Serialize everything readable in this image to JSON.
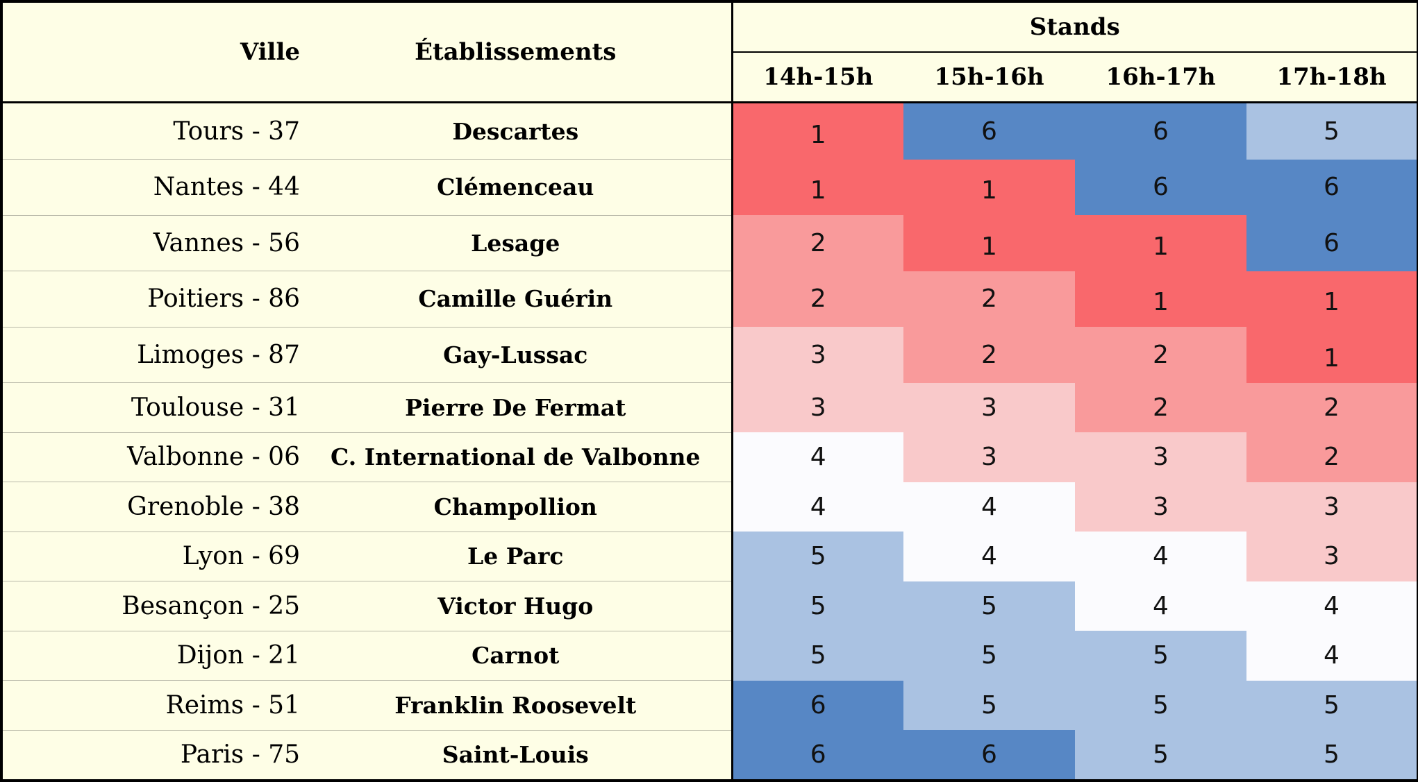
{
  "header": {
    "ville": "Ville",
    "etablissements": "Établissements",
    "stands": "Stands",
    "slots": [
      "14h-15h",
      "15h-16h",
      "16h-17h",
      "17h-18h"
    ]
  },
  "colors": {
    "1": "#f9686c",
    "2": "#f99a9b",
    "3": "#f9c9ca",
    "4": "#fbfbfe",
    "5": "#aac2e2",
    "6": "#5787c5"
  },
  "rows": [
    {
      "ville": "Tours - 37",
      "etab": "Descartes",
      "values": [
        1,
        6,
        6,
        5
      ]
    },
    {
      "ville": "Nantes - 44",
      "etab": "Clémenceau",
      "values": [
        1,
        1,
        6,
        6
      ]
    },
    {
      "ville": "Vannes - 56",
      "etab": "Lesage",
      "values": [
        2,
        1,
        1,
        6
      ]
    },
    {
      "ville": "Poitiers - 86",
      "etab": "Camille Guérin",
      "values": [
        2,
        2,
        1,
        1
      ]
    },
    {
      "ville": "Limoges - 87",
      "etab": "Gay-Lussac",
      "values": [
        3,
        2,
        2,
        1
      ]
    },
    {
      "ville": "Toulouse - 31",
      "etab": "Pierre De Fermat",
      "values": [
        3,
        3,
        2,
        2
      ]
    },
    {
      "ville": "Valbonne - 06",
      "etab": "C. International de Valbonne",
      "values": [
        4,
        3,
        3,
        2
      ]
    },
    {
      "ville": "Grenoble - 38",
      "etab": "Champollion",
      "values": [
        4,
        4,
        3,
        3
      ]
    },
    {
      "ville": "Lyon - 69",
      "etab": "Le Parc",
      "values": [
        5,
        4,
        4,
        3
      ]
    },
    {
      "ville": "Besançon - 25",
      "etab": "Victor Hugo",
      "values": [
        5,
        5,
        4,
        4
      ]
    },
    {
      "ville": "Dijon - 21",
      "etab": "Carnot",
      "values": [
        5,
        5,
        5,
        4
      ]
    },
    {
      "ville": "Reims - 51",
      "etab": "Franklin Roosevelt",
      "values": [
        6,
        5,
        5,
        5
      ]
    },
    {
      "ville": "Paris - 75",
      "etab": "Saint-Louis",
      "values": [
        6,
        6,
        5,
        5
      ]
    }
  ]
}
